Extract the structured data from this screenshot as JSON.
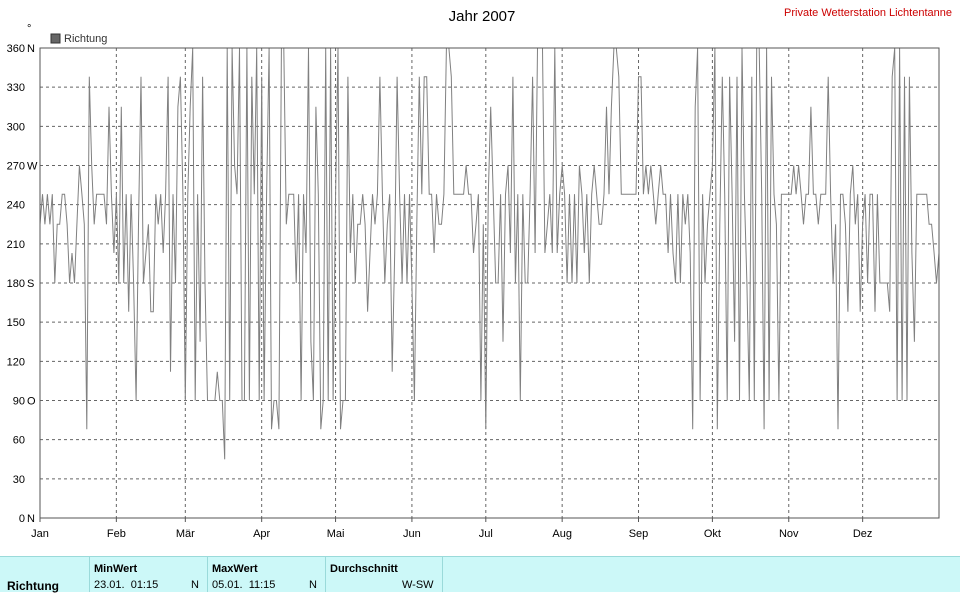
{
  "title": "Jahr 2007",
  "station": "Private Wetterstation Lichtentanne",
  "legend": {
    "label": "Richtung",
    "color": "#666666"
  },
  "chart_data": {
    "type": "line",
    "title": "Jahr 2007",
    "series": [
      {
        "name": "Richtung",
        "color": "#808080"
      }
    ],
    "x_range": [
      0,
      365
    ],
    "ylim": [
      0,
      360
    ],
    "y_unit": "°",
    "grid": true,
    "yticks": [
      {
        "value": 0,
        "label": "0",
        "dir": "N"
      },
      {
        "value": 30,
        "label": "30",
        "dir": ""
      },
      {
        "value": 60,
        "label": "60",
        "dir": ""
      },
      {
        "value": 90,
        "label": "90",
        "dir": "O"
      },
      {
        "value": 120,
        "label": "120",
        "dir": ""
      },
      {
        "value": 150,
        "label": "150",
        "dir": ""
      },
      {
        "value": 180,
        "label": "180",
        "dir": "S"
      },
      {
        "value": 210,
        "label": "210",
        "dir": ""
      },
      {
        "value": 240,
        "label": "240",
        "dir": ""
      },
      {
        "value": 270,
        "label": "270",
        "dir": "W"
      },
      {
        "value": 300,
        "label": "300",
        "dir": ""
      },
      {
        "value": 330,
        "label": "330",
        "dir": ""
      },
      {
        "value": 360,
        "label": "360",
        "dir": "N"
      }
    ],
    "xticks": [
      {
        "day": 0,
        "label": "Jan"
      },
      {
        "day": 31,
        "label": "Feb"
      },
      {
        "day": 59,
        "label": "Mär"
      },
      {
        "day": 90,
        "label": "Apr"
      },
      {
        "day": 120,
        "label": "Mai"
      },
      {
        "day": 151,
        "label": "Jun"
      },
      {
        "day": 181,
        "label": "Jul"
      },
      {
        "day": 212,
        "label": "Aug"
      },
      {
        "day": 243,
        "label": "Sep"
      },
      {
        "day": 273,
        "label": "Okt"
      },
      {
        "day": 304,
        "label": "Nov"
      },
      {
        "day": 334,
        "label": "Dez"
      }
    ],
    "points": [
      [
        0,
        225
      ],
      [
        1,
        248
      ],
      [
        2,
        225
      ],
      [
        3,
        248
      ],
      [
        4,
        225
      ],
      [
        5,
        248
      ],
      [
        6,
        180
      ],
      [
        7,
        225
      ],
      [
        8,
        225
      ],
      [
        9,
        248
      ],
      [
        10,
        248
      ],
      [
        11,
        225
      ],
      [
        12,
        180
      ],
      [
        13,
        203
      ],
      [
        14,
        180
      ],
      [
        15,
        225
      ],
      [
        16,
        270
      ],
      [
        17,
        248
      ],
      [
        18,
        225
      ],
      [
        19,
        68
      ],
      [
        20,
        338
      ],
      [
        21,
        270
      ],
      [
        22,
        225
      ],
      [
        23,
        248
      ],
      [
        24,
        248
      ],
      [
        25,
        248
      ],
      [
        26,
        248
      ],
      [
        27,
        225
      ],
      [
        28,
        315
      ],
      [
        29,
        248
      ],
      [
        30,
        203
      ],
      [
        31,
        248
      ],
      [
        32,
        180
      ],
      [
        33,
        315
      ],
      [
        34,
        180
      ],
      [
        35,
        248
      ],
      [
        36,
        158
      ],
      [
        37,
        248
      ],
      [
        38,
        180
      ],
      [
        39,
        90
      ],
      [
        40,
        225
      ],
      [
        41,
        338
      ],
      [
        42,
        180
      ],
      [
        43,
        203
      ],
      [
        44,
        225
      ],
      [
        45,
        158
      ],
      [
        46,
        158
      ],
      [
        47,
        248
      ],
      [
        48,
        225
      ],
      [
        49,
        248
      ],
      [
        50,
        203
      ],
      [
        51,
        248
      ],
      [
        52,
        338
      ],
      [
        53,
        112
      ],
      [
        54,
        248
      ],
      [
        55,
        180
      ],
      [
        56,
        315
      ],
      [
        57,
        338
      ],
      [
        58,
        248
      ],
      [
        59,
        90
      ],
      [
        60,
        248
      ],
      [
        61,
        315
      ],
      [
        62,
        360
      ],
      [
        63,
        90
      ],
      [
        64,
        248
      ],
      [
        65,
        135
      ],
      [
        66,
        338
      ],
      [
        67,
        180
      ],
      [
        68,
        90
      ],
      [
        69,
        90
      ],
      [
        70,
        90
      ],
      [
        71,
        90
      ],
      [
        72,
        112
      ],
      [
        73,
        90
      ],
      [
        74,
        90
      ],
      [
        75,
        45
      ],
      [
        76,
        360
      ],
      [
        77,
        90
      ],
      [
        78,
        360
      ],
      [
        79,
        270
      ],
      [
        80,
        248
      ],
      [
        81,
        360
      ],
      [
        82,
        90
      ],
      [
        83,
        90
      ],
      [
        84,
        360
      ],
      [
        85,
        90
      ],
      [
        86,
        338
      ],
      [
        87,
        248
      ],
      [
        88,
        360
      ],
      [
        89,
        90
      ],
      [
        90,
        338
      ],
      [
        91,
        90
      ],
      [
        92,
        248
      ],
      [
        93,
        360
      ],
      [
        94,
        68
      ],
      [
        95,
        90
      ],
      [
        96,
        90
      ],
      [
        97,
        68
      ],
      [
        98,
        360
      ],
      [
        99,
        360
      ],
      [
        100,
        225
      ],
      [
        101,
        248
      ],
      [
        102,
        248
      ],
      [
        103,
        248
      ],
      [
        104,
        180
      ],
      [
        105,
        248
      ],
      [
        106,
        90
      ],
      [
        107,
        248
      ],
      [
        108,
        203
      ],
      [
        109,
        360
      ],
      [
        110,
        135
      ],
      [
        111,
        90
      ],
      [
        112,
        315
      ],
      [
        113,
        248
      ],
      [
        114,
        68
      ],
      [
        115,
        90
      ],
      [
        116,
        360
      ],
      [
        117,
        90
      ],
      [
        118,
        360
      ],
      [
        119,
        90
      ],
      [
        120,
        248
      ],
      [
        121,
        360
      ],
      [
        122,
        68
      ],
      [
        123,
        90
      ],
      [
        124,
        90
      ],
      [
        125,
        338
      ],
      [
        126,
        203
      ],
      [
        127,
        248
      ],
      [
        128,
        180
      ],
      [
        129,
        225
      ],
      [
        130,
        225
      ],
      [
        131,
        248
      ],
      [
        132,
        225
      ],
      [
        133,
        158
      ],
      [
        134,
        203
      ],
      [
        135,
        248
      ],
      [
        136,
        225
      ],
      [
        137,
        248
      ],
      [
        138,
        338
      ],
      [
        139,
        248
      ],
      [
        140,
        180
      ],
      [
        141,
        225
      ],
      [
        142,
        248
      ],
      [
        143,
        112
      ],
      [
        144,
        203
      ],
      [
        145,
        338
      ],
      [
        146,
        248
      ],
      [
        147,
        180
      ],
      [
        148,
        248
      ],
      [
        149,
        180
      ],
      [
        150,
        248
      ],
      [
        151,
        180
      ],
      [
        152,
        90
      ],
      [
        153,
        225
      ],
      [
        154,
        338
      ],
      [
        155,
        248
      ],
      [
        156,
        338
      ],
      [
        157,
        338
      ],
      [
        158,
        248
      ],
      [
        159,
        248
      ],
      [
        160,
        203
      ],
      [
        161,
        248
      ],
      [
        162,
        225
      ],
      [
        163,
        225
      ],
      [
        164,
        248
      ],
      [
        165,
        360
      ],
      [
        166,
        360
      ],
      [
        167,
        338
      ],
      [
        168,
        248
      ],
      [
        169,
        248
      ],
      [
        170,
        248
      ],
      [
        171,
        248
      ],
      [
        172,
        248
      ],
      [
        173,
        270
      ],
      [
        174,
        248
      ],
      [
        175,
        248
      ],
      [
        176,
        203
      ],
      [
        177,
        225
      ],
      [
        178,
        248
      ],
      [
        179,
        90
      ],
      [
        180,
        225
      ],
      [
        181,
        68
      ],
      [
        182,
        248
      ],
      [
        183,
        315
      ],
      [
        184,
        248
      ],
      [
        185,
        180
      ],
      [
        186,
        180
      ],
      [
        187,
        248
      ],
      [
        188,
        135
      ],
      [
        189,
        248
      ],
      [
        190,
        270
      ],
      [
        191,
        203
      ],
      [
        192,
        338
      ],
      [
        193,
        180
      ],
      [
        194,
        248
      ],
      [
        195,
        90
      ],
      [
        196,
        248
      ],
      [
        197,
        180
      ],
      [
        198,
        180
      ],
      [
        199,
        248
      ],
      [
        200,
        338
      ],
      [
        201,
        203
      ],
      [
        202,
        360
      ],
      [
        203,
        360
      ],
      [
        204,
        360
      ],
      [
        205,
        203
      ],
      [
        206,
        225
      ],
      [
        207,
        248
      ],
      [
        208,
        203
      ],
      [
        209,
        360
      ],
      [
        210,
        203
      ],
      [
        211,
        248
      ],
      [
        212,
        270
      ],
      [
        213,
        248
      ],
      [
        214,
        180
      ],
      [
        215,
        248
      ],
      [
        216,
        180
      ],
      [
        217,
        248
      ],
      [
        218,
        180
      ],
      [
        219,
        270
      ],
      [
        220,
        248
      ],
      [
        221,
        203
      ],
      [
        222,
        248
      ],
      [
        223,
        180
      ],
      [
        224,
        248
      ],
      [
        225,
        270
      ],
      [
        226,
        248
      ],
      [
        227,
        225
      ],
      [
        228,
        225
      ],
      [
        229,
        248
      ],
      [
        230,
        315
      ],
      [
        231,
        248
      ],
      [
        232,
        315
      ],
      [
        233,
        360
      ],
      [
        234,
        360
      ],
      [
        235,
        338
      ],
      [
        236,
        248
      ],
      [
        237,
        248
      ],
      [
        238,
        248
      ],
      [
        239,
        248
      ],
      [
        240,
        248
      ],
      [
        241,
        248
      ],
      [
        242,
        248
      ],
      [
        243,
        338
      ],
      [
        244,
        338
      ],
      [
        245,
        248
      ],
      [
        246,
        270
      ],
      [
        247,
        248
      ],
      [
        248,
        270
      ],
      [
        249,
        248
      ],
      [
        250,
        225
      ],
      [
        251,
        248
      ],
      [
        252,
        270
      ],
      [
        253,
        248
      ],
      [
        254,
        248
      ],
      [
        255,
        203
      ],
      [
        256,
        248
      ],
      [
        257,
        203
      ],
      [
        258,
        180
      ],
      [
        259,
        248
      ],
      [
        260,
        180
      ],
      [
        261,
        248
      ],
      [
        262,
        225
      ],
      [
        263,
        248
      ],
      [
        264,
        203
      ],
      [
        265,
        68
      ],
      [
        266,
        315
      ],
      [
        267,
        360
      ],
      [
        268,
        90
      ],
      [
        269,
        248
      ],
      [
        270,
        180
      ],
      [
        271,
        225
      ],
      [
        272,
        248
      ],
      [
        273,
        270
      ],
      [
        274,
        360
      ],
      [
        275,
        68
      ],
      [
        276,
        225
      ],
      [
        277,
        338
      ],
      [
        278,
        248
      ],
      [
        279,
        90
      ],
      [
        280,
        338
      ],
      [
        281,
        248
      ],
      [
        282,
        135
      ],
      [
        283,
        338
      ],
      [
        284,
        90
      ],
      [
        285,
        360
      ],
      [
        286,
        248
      ],
      [
        287,
        180
      ],
      [
        288,
        90
      ],
      [
        289,
        338
      ],
      [
        290,
        90
      ],
      [
        291,
        360
      ],
      [
        292,
        360
      ],
      [
        293,
        248
      ],
      [
        294,
        68
      ],
      [
        295,
        360
      ],
      [
        296,
        90
      ],
      [
        297,
        338
      ],
      [
        298,
        248
      ],
      [
        299,
        225
      ],
      [
        300,
        90
      ],
      [
        301,
        248
      ],
      [
        302,
        248
      ],
      [
        303,
        248
      ],
      [
        304,
        248
      ],
      [
        305,
        248
      ],
      [
        306,
        270
      ],
      [
        307,
        248
      ],
      [
        308,
        270
      ],
      [
        309,
        248
      ],
      [
        310,
        225
      ],
      [
        311,
        248
      ],
      [
        312,
        248
      ],
      [
        313,
        315
      ],
      [
        314,
        248
      ],
      [
        315,
        248
      ],
      [
        316,
        225
      ],
      [
        317,
        248
      ],
      [
        318,
        248
      ],
      [
        319,
        248
      ],
      [
        320,
        338
      ],
      [
        321,
        248
      ],
      [
        322,
        180
      ],
      [
        323,
        225
      ],
      [
        324,
        68
      ],
      [
        325,
        248
      ],
      [
        326,
        248
      ],
      [
        327,
        225
      ],
      [
        328,
        158
      ],
      [
        329,
        248
      ],
      [
        330,
        270
      ],
      [
        331,
        225
      ],
      [
        332,
        248
      ],
      [
        333,
        158
      ],
      [
        334,
        225
      ],
      [
        335,
        248
      ],
      [
        336,
        180
      ],
      [
        337,
        248
      ],
      [
        338,
        248
      ],
      [
        339,
        158
      ],
      [
        340,
        248
      ],
      [
        341,
        180
      ],
      [
        342,
        180
      ],
      [
        343,
        180
      ],
      [
        344,
        180
      ],
      [
        345,
        158
      ],
      [
        346,
        338
      ],
      [
        347,
        360
      ],
      [
        348,
        90
      ],
      [
        349,
        360
      ],
      [
        350,
        90
      ],
      [
        351,
        338
      ],
      [
        352,
        90
      ],
      [
        353,
        338
      ],
      [
        354,
        203
      ],
      [
        355,
        135
      ],
      [
        356,
        248
      ],
      [
        357,
        248
      ],
      [
        358,
        248
      ],
      [
        359,
        248
      ],
      [
        360,
        248
      ],
      [
        361,
        225
      ],
      [
        362,
        225
      ],
      [
        363,
        203
      ],
      [
        364,
        180
      ],
      [
        365,
        203
      ]
    ]
  },
  "stats": {
    "row_label": "Richtung",
    "min": {
      "header": "MinWert",
      "datetime": "23.01.  01:15",
      "dir": "N"
    },
    "max": {
      "header": "MaxWert",
      "datetime": "05.01.  11:15",
      "dir": "N"
    },
    "avg": {
      "header": "Durchschnitt",
      "dir": "W-SW"
    }
  }
}
